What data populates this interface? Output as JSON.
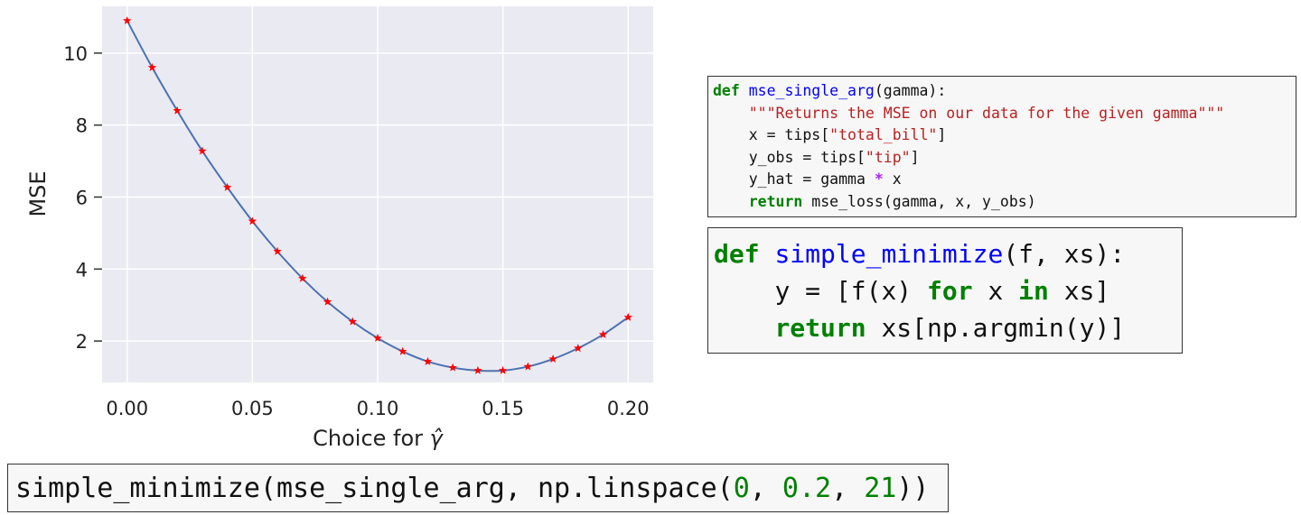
{
  "chart_data": {
    "type": "line",
    "xlabel": "Choice for ",
    "xlabel_symbol": "γ̂",
    "ylabel": "MSE",
    "xlim": [
      -0.01,
      0.21
    ],
    "ylim": [
      0.85,
      11.3
    ],
    "xticks": [
      0.0,
      0.05,
      0.1,
      0.15,
      0.2
    ],
    "xtick_labels": [
      "0.00",
      "0.05",
      "0.10",
      "0.15",
      "0.20"
    ],
    "yticks": [
      2,
      4,
      6,
      8,
      10
    ],
    "ytick_labels": [
      "2",
      "4",
      "6",
      "8",
      "10"
    ],
    "grid": true,
    "background": "#eaeaf2",
    "line_color": "#4c72b0",
    "marker_color": "#ff0000",
    "marker": "star",
    "x": [
      0.0,
      0.01,
      0.02,
      0.03,
      0.04,
      0.05,
      0.06,
      0.07,
      0.08,
      0.09,
      0.1,
      0.11,
      0.12,
      0.13,
      0.14,
      0.15,
      0.16,
      0.17,
      0.18,
      0.19,
      0.2
    ],
    "y": [
      10.9,
      9.6,
      8.4,
      7.28,
      6.27,
      5.33,
      4.49,
      3.74,
      3.09,
      2.54,
      2.08,
      1.71,
      1.43,
      1.26,
      1.18,
      1.18,
      1.29,
      1.5,
      1.8,
      2.18,
      2.66
    ]
  },
  "code_blocks": {
    "mse_single_arg": [
      "def mse_single_arg(gamma):",
      "    \"\"\"Returns the MSE on our data for the given gamma\"\"\"",
      "    x = tips[\"total_bill\"]",
      "    y_obs = tips[\"tip\"]",
      "    y_hat = gamma * x",
      "    return mse_loss(gamma, x, y_obs)"
    ],
    "simple_minimize": [
      "def simple_minimize(f, xs):",
      "    y = [f(x) for x in xs]",
      "    return xs[np.argmin(y)]"
    ],
    "call": "simple_minimize(mse_single_arg, np.linspace(0, 0.2, 21))"
  },
  "tokens": {
    "def": "def",
    "return": "return",
    "for": "for",
    "in": "in",
    "mse_single_arg_name": "mse_single_arg",
    "mse_single_arg_params": "(gamma):",
    "docstring": "\"\"\"Returns the MSE on our data for the given gamma\"\"\"",
    "line_x_a": "x = tips[",
    "line_x_str": "\"total_bill\"",
    "line_x_b": "]",
    "line_yobs_a": "y_obs = tips[",
    "line_yobs_str": "\"tip\"",
    "line_yobs_b": "]",
    "line_yhat_a": "y_hat = gamma ",
    "line_yhat_op": "*",
    "line_yhat_b": " x",
    "line_ret1": " mse_loss(gamma, x, y_obs)",
    "sm_name": "simple_minimize",
    "sm_params": "(f, xs):",
    "sm_y_a": "y = [f(x) ",
    "sm_y_b": " x ",
    "sm_y_c": " xs]",
    "sm_ret": " xs[np.argmin(y)]",
    "call_a": "simple_minimize(mse_single_arg, np.linspace(",
    "call_n1": "0",
    "call_sep1": ", ",
    "call_n2": "0.2",
    "call_sep2": ", ",
    "call_n3": "21",
    "call_end": "))"
  }
}
